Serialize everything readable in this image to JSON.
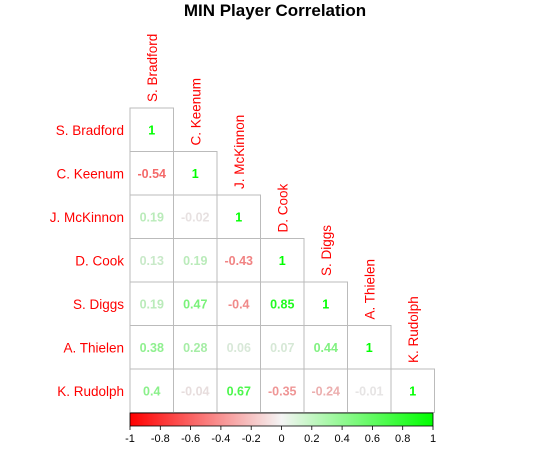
{
  "chart_data": {
    "type": "heatmap",
    "title": "MIN Player Correlation",
    "players": [
      "S. Bradford",
      "C. Keenum",
      "J. McKinnon",
      "D. Cook",
      "S. Diggs",
      "A. Thielen",
      "K. Rudolph"
    ],
    "matrix": [
      [
        "1"
      ],
      [
        "-0.54",
        "1"
      ],
      [
        "0.19",
        "-0.02",
        "1"
      ],
      [
        "0.13",
        "0.19",
        "-0.43",
        "1"
      ],
      [
        "0.19",
        "0.47",
        "-0.4",
        "0.85",
        "1"
      ],
      [
        "0.38",
        "0.28",
        "0.06",
        "0.07",
        "0.44",
        "1"
      ],
      [
        "0.4",
        "-0.04",
        "0.67",
        "-0.35",
        "-0.24",
        "-0.01",
        "1"
      ]
    ],
    "colorbar": {
      "ticks": [
        "-1",
        "-0.8",
        "-0.6",
        "-0.4",
        "-0.2",
        "0",
        "0.2",
        "0.4",
        "0.6",
        "0.8",
        "1"
      ],
      "range": [
        -1,
        1
      ]
    },
    "colors": {
      "negative": "#ff0000",
      "neutral": "#e6e6e6",
      "positive": "#00ff00",
      "label": "#ff0000",
      "grid": "#bbbbbb"
    }
  }
}
